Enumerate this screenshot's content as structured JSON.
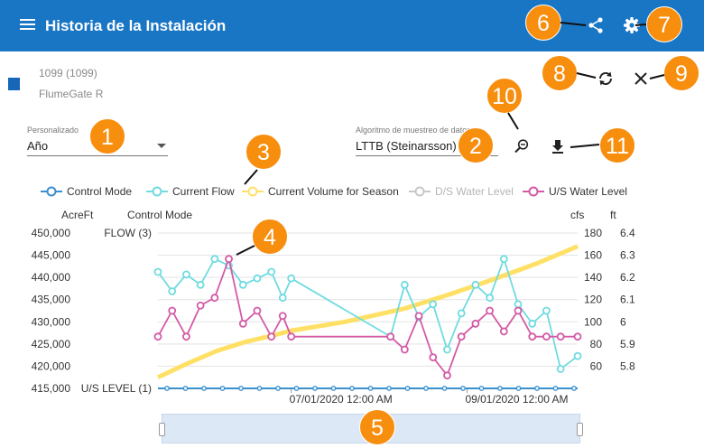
{
  "header": {
    "title": "Historia de la Instalación",
    "menu_icon": "menu-icon",
    "share_icon": "share-icon",
    "settings_icon": "gear-icon",
    "refresh_icon": "refresh-icon",
    "close_icon": "close-icon"
  },
  "station": {
    "code": "1099 (1099)",
    "name": "FlumeGate R",
    "color": "#1766b8"
  },
  "period": {
    "label": "Personalizado",
    "value": "Año"
  },
  "algorithm": {
    "label": "Algoritmo de muestreo de datos",
    "value": "LTTB (Steinarsson)"
  },
  "toolbar": {
    "zoom_reset_icon": "zoom-out-icon",
    "download_icon": "download-icon"
  },
  "callouts": [
    "1",
    "2",
    "3",
    "4",
    "5",
    "6",
    "7",
    "8",
    "9",
    "10",
    "11"
  ],
  "colors": {
    "header": "#1976c4",
    "callout": "#f78e0e",
    "control_mode": "#3a8fcf",
    "current_flow": "#70dbe0",
    "current_volume": "#ffe066",
    "ds_level": "#c8c8c8",
    "us_level": "#d45aa6"
  },
  "chart_data": {
    "type": "line",
    "legend": [
      {
        "name": "Control Mode",
        "color": "#3a8fcf",
        "visible": true
      },
      {
        "name": "Current Flow",
        "color": "#70dbe0",
        "visible": true
      },
      {
        "name": "Current Volume for Season",
        "color": "#ffe066",
        "visible": true
      },
      {
        "name": "D/S Water Level",
        "color": "#c8c8c8",
        "visible": false
      },
      {
        "name": "U/S Water Level",
        "color": "#d45aa6",
        "visible": true
      }
    ],
    "axes": {
      "volume": {
        "label": "AcreFt",
        "ticks": [
          "450,000",
          "445,000",
          "440,000",
          "435,000",
          "430,000",
          "425,000",
          "420,000",
          "415,000"
        ],
        "range": [
          415000,
          450000
        ]
      },
      "control": {
        "label": "Control Mode",
        "ticks": [
          "FLOW (3)",
          "U/S LEVEL (1)"
        ]
      },
      "flow": {
        "label": "cfs",
        "ticks": [
          "180",
          "160",
          "140",
          "120",
          "100",
          "80",
          "60"
        ],
        "range": [
          60,
          180
        ]
      },
      "level": {
        "label": "ft",
        "ticks": [
          "6.4",
          "6.3",
          "6.2",
          "6.1",
          "6",
          "5.9",
          "5.8"
        ],
        "range": [
          5.8,
          6.4
        ]
      },
      "x": {
        "ticks": [
          "07/01/2020 12:00 AM",
          "09/01/2020 12:00 AM"
        ]
      }
    },
    "x_range": [
      "2020-05-15",
      "2020-10-10"
    ],
    "series": {
      "control_mode": {
        "x": [
          "2020-05-15",
          "2020-10-10"
        ],
        "y": [
          1,
          1
        ]
      },
      "current_volume": {
        "x": [
          "2020-05-15",
          "2020-05-25",
          "2020-06-05",
          "2020-06-15",
          "2020-06-25",
          "2020-07-01",
          "2020-07-20",
          "2020-08-10",
          "2020-08-25",
          "2020-09-10",
          "2020-09-25",
          "2020-10-10"
        ],
        "y": [
          417500,
          420500,
          423500,
          425500,
          427000,
          428000,
          430000,
          433000,
          436000,
          439500,
          443000,
          447000
        ]
      },
      "current_flow": {
        "x": [
          "2020-05-15",
          "2020-05-20",
          "2020-05-25",
          "2020-05-30",
          "2020-06-04",
          "2020-06-09",
          "2020-06-14",
          "2020-06-19",
          "2020-06-24",
          "2020-06-28",
          "2020-07-01",
          "2020-08-05",
          "2020-08-10",
          "2020-08-15",
          "2020-08-20",
          "2020-08-25",
          "2020-08-30",
          "2020-09-04",
          "2020-09-09",
          "2020-09-14",
          "2020-09-19",
          "2020-09-24",
          "2020-09-29",
          "2020-10-04",
          "2020-10-10"
        ],
        "y": [
          150,
          135,
          148,
          140,
          160,
          155,
          140,
          145,
          150,
          130,
          145,
          100,
          140,
          115,
          125,
          90,
          118,
          140,
          130,
          160,
          125,
          110,
          120,
          75,
          85
        ]
      },
      "us_level": {
        "x": [
          "2020-05-15",
          "2020-05-20",
          "2020-05-25",
          "2020-05-30",
          "2020-06-04",
          "2020-06-09",
          "2020-06-14",
          "2020-06-19",
          "2020-06-24",
          "2020-06-28",
          "2020-07-01",
          "2020-08-05",
          "2020-08-10",
          "2020-08-15",
          "2020-08-20",
          "2020-08-25",
          "2020-08-30",
          "2020-09-04",
          "2020-09-09",
          "2020-09-14",
          "2020-09-19",
          "2020-09-24",
          "2020-09-29",
          "2020-10-04",
          "2020-10-10"
        ],
        "y": [
          6.0,
          6.1,
          6.0,
          6.12,
          6.15,
          6.3,
          6.05,
          6.1,
          6.0,
          6.08,
          6.0,
          6.0,
          5.95,
          6.08,
          5.92,
          5.85,
          6.0,
          6.05,
          6.1,
          6.02,
          6.1,
          6.0,
          6.0,
          6.0,
          6.0
        ]
      }
    }
  }
}
